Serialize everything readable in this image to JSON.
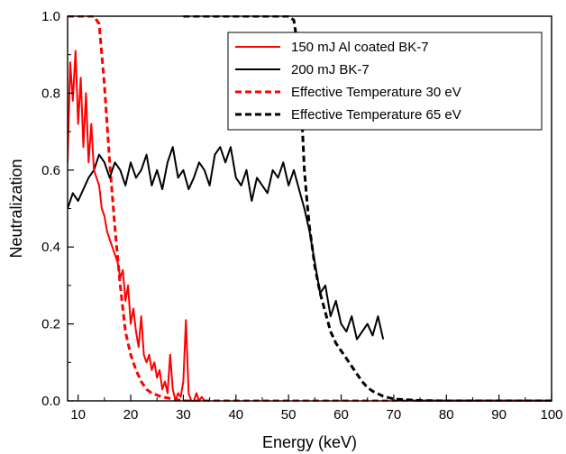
{
  "chart_data": {
    "type": "line",
    "xlabel": "Energy (keV)",
    "ylabel": "Neutralization",
    "xlim": [
      8,
      100
    ],
    "ylim": [
      0,
      1.0
    ],
    "x_ticks": [
      10,
      20,
      30,
      40,
      50,
      60,
      70,
      80,
      90,
      100
    ],
    "y_ticks": [
      0.0,
      0.2,
      0.4,
      0.6,
      0.8,
      1.0
    ],
    "x_tick_labels": [
      "10",
      "20",
      "30",
      "40",
      "50",
      "60",
      "70",
      "80",
      "90",
      "100"
    ],
    "y_tick_labels": [
      "0.0",
      "0.2",
      "0.4",
      "0.6",
      "0.8",
      "1.0"
    ],
    "legend_position": "top-right",
    "series": [
      {
        "name": "150 mJ Al coated BK-7",
        "color": "#ff0000",
        "style": "solid",
        "x": [
          8,
          8.5,
          9,
          9.5,
          10,
          10.5,
          11,
          11.5,
          12,
          12.5,
          13,
          13.5,
          14,
          14.5,
          15,
          15.5,
          16,
          16.5,
          17,
          17.5,
          18,
          18.5,
          19,
          19.5,
          20,
          20.5,
          21,
          21.5,
          22,
          22.5,
          23,
          23.5,
          24,
          24.5,
          25,
          25.5,
          26,
          26.5,
          27,
          27.5,
          28,
          28.5,
          29,
          29.5,
          30,
          30.5,
          31,
          31.5,
          32,
          32.5,
          33,
          33.5,
          34
        ],
        "y": [
          0.62,
          0.88,
          0.78,
          0.91,
          0.72,
          0.84,
          0.66,
          0.8,
          0.62,
          0.72,
          0.6,
          0.58,
          0.56,
          0.5,
          0.48,
          0.44,
          0.42,
          0.4,
          0.38,
          0.36,
          0.32,
          0.34,
          0.26,
          0.3,
          0.2,
          0.24,
          0.18,
          0.14,
          0.22,
          0.12,
          0.1,
          0.12,
          0.08,
          0.1,
          0.06,
          0.08,
          0.03,
          0.05,
          0.02,
          0.12,
          0.03,
          0.0,
          0.02,
          0.01,
          0.05,
          0.21,
          0.02,
          0.0,
          0.0,
          0.02,
          0.0,
          0.01,
          0.0
        ]
      },
      {
        "name": "200 mJ BK-7",
        "color": "#000000",
        "style": "solid",
        "x": [
          8,
          9,
          10,
          11,
          12,
          13,
          14,
          15,
          16,
          17,
          18,
          19,
          20,
          21,
          22,
          23,
          24,
          25,
          26,
          27,
          28,
          29,
          30,
          31,
          32,
          33,
          34,
          35,
          36,
          37,
          38,
          39,
          40,
          41,
          42,
          43,
          44,
          45,
          46,
          47,
          48,
          49,
          50,
          51,
          52,
          53,
          54,
          55,
          56,
          57,
          58,
          59,
          60,
          61,
          62,
          63,
          64,
          65,
          66,
          67,
          68
        ],
        "y": [
          0.5,
          0.54,
          0.52,
          0.55,
          0.58,
          0.6,
          0.64,
          0.62,
          0.58,
          0.62,
          0.6,
          0.56,
          0.62,
          0.58,
          0.6,
          0.64,
          0.56,
          0.6,
          0.55,
          0.62,
          0.66,
          0.58,
          0.6,
          0.55,
          0.58,
          0.62,
          0.6,
          0.56,
          0.64,
          0.66,
          0.62,
          0.66,
          0.58,
          0.56,
          0.6,
          0.52,
          0.58,
          0.56,
          0.54,
          0.6,
          0.58,
          0.62,
          0.56,
          0.6,
          0.55,
          0.5,
          0.44,
          0.36,
          0.28,
          0.3,
          0.22,
          0.26,
          0.2,
          0.18,
          0.22,
          0.16,
          0.18,
          0.2,
          0.17,
          0.22,
          0.16
        ]
      },
      {
        "name": "Effective Temperature 30 eV",
        "color": "#ff0000",
        "style": "dashed",
        "x": [
          8,
          10,
          12,
          13,
          14,
          15,
          16,
          17,
          18,
          19,
          20,
          21,
          22,
          23,
          24,
          26,
          28,
          30,
          35,
          40,
          50,
          60,
          70,
          80,
          90,
          100
        ],
        "y": [
          1.0,
          1.0,
          1.0,
          1.0,
          0.98,
          0.82,
          0.62,
          0.45,
          0.3,
          0.18,
          0.12,
          0.08,
          0.05,
          0.03,
          0.02,
          0.01,
          0.005,
          0.0,
          0.0,
          0.0,
          0.0,
          0.0,
          0.0,
          0.0,
          0.0,
          0.0
        ]
      },
      {
        "name": "Effective Temperature 65 eV",
        "color": "#000000",
        "style": "dashed",
        "x": [
          30,
          40,
          48,
          50,
          51,
          52,
          52.5,
          53,
          53.5,
          54,
          55,
          56,
          57,
          58,
          59,
          60,
          61,
          62,
          63,
          64,
          65,
          66,
          68,
          70,
          75,
          80,
          90,
          100
        ],
        "y": [
          1.0,
          1.0,
          1.0,
          1.0,
          0.99,
          0.9,
          0.75,
          0.6,
          0.52,
          0.45,
          0.35,
          0.28,
          0.23,
          0.18,
          0.15,
          0.13,
          0.11,
          0.09,
          0.07,
          0.05,
          0.035,
          0.025,
          0.012,
          0.005,
          0.001,
          0.0,
          0.0,
          0.0
        ]
      }
    ]
  }
}
